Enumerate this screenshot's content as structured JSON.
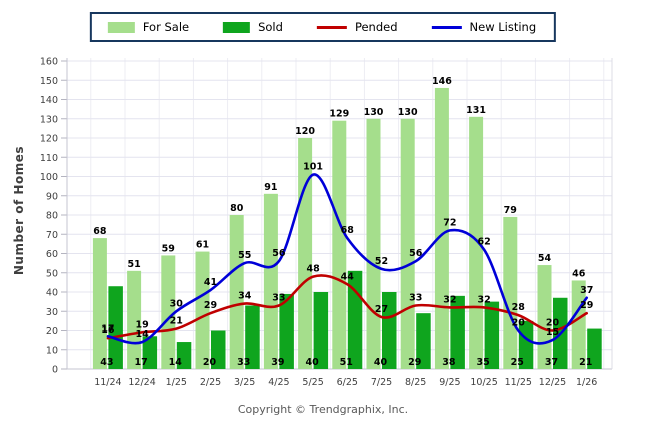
{
  "legend": {
    "border_color": "#17375E",
    "position": "top-center"
  },
  "chart_data": {
    "type": "bar",
    "subtype": "grouped-bars-with-smoothed-lines",
    "categories": [
      "11/24",
      "12/24",
      "1/25",
      "2/25",
      "3/25",
      "4/25",
      "5/25",
      "6/25",
      "7/25",
      "8/25",
      "9/25",
      "10/25",
      "11/25",
      "12/25",
      "1/26"
    ],
    "series": [
      {
        "name": "For Sale",
        "type": "bar",
        "color": "#A5DE8C",
        "values": [
          68,
          51,
          59,
          61,
          80,
          91,
          120,
          129,
          130,
          130,
          146,
          131,
          79,
          54,
          46
        ]
      },
      {
        "name": "Sold",
        "type": "bar",
        "color": "#0FA51E",
        "values": [
          43,
          17,
          14,
          20,
          33,
          39,
          40,
          51,
          40,
          29,
          38,
          35,
          25,
          37,
          21
        ]
      },
      {
        "name": "Pended",
        "type": "line",
        "color": "#C00000",
        "values": [
          16,
          19,
          21,
          29,
          34,
          33,
          48,
          44,
          27,
          33,
          32,
          32,
          28,
          20,
          29
        ]
      },
      {
        "name": "New Listing",
        "type": "line",
        "color": "#0000D8",
        "values": [
          17,
          14,
          30,
          41,
          55,
          56,
          101,
          68,
          52,
          56,
          72,
          62,
          20,
          15,
          37
        ]
      }
    ],
    "title": "",
    "xlabel": "",
    "ylabel": "Number of Homes",
    "ylim": [
      0,
      160
    ],
    "ytick_step": 10,
    "grid": true,
    "legend_position": "top"
  },
  "footer": "Copyright © Trendgraphix, Inc."
}
